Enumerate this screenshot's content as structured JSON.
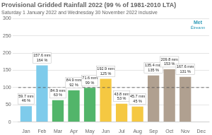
{
  "chart_data": {
    "type": "bar",
    "title": "Provisional Gridded Rainfall 2022 (99 % of 1981-2010 LTA)",
    "subtitle": "Saturday 1 January 2022 and Wednesday 30 November 2022 inclusive",
    "categories": [
      "Jan",
      "Feb",
      "Mar",
      "Apr",
      "May",
      "Jun",
      "Jul",
      "Aug",
      "Sep",
      "Oct",
      "Nov",
      "Dec"
    ],
    "values": [
      46,
      164,
      63,
      92,
      99,
      125,
      53,
      45,
      135,
      153,
      131,
      null
    ],
    "value_labels": [
      "46 %",
      "164 %",
      "63 %",
      "92 %",
      "99 %",
      "125 %",
      "53 %",
      "45 %",
      "135 %",
      "153 %",
      "131 %",
      null
    ],
    "rainfall_labels": [
      "59.7 mm",
      "157.6 mm",
      "84.9 mm",
      "84.9 mm",
      "71.6 mm",
      "192.9 mm",
      "43.8 mm",
      "45.7 mm",
      "135.4 mm",
      "209.8 mm",
      "167.6 mm",
      null
    ],
    "colors": [
      "#7ECBEB",
      "#7ECBEB",
      "#52B56A",
      "#52B56A",
      "#52B56A",
      "#F5C842",
      "#F5C842",
      "#F5C842",
      "#B0A090",
      "#B0A090",
      "#B0A090",
      "#B0A090"
    ],
    "reference_line": 100,
    "ylim": [
      0,
      300
    ],
    "yticks": [
      0,
      50,
      100,
      150,
      200,
      250,
      300
    ],
    "grid": true,
    "data_labels": true,
    "annotations": [
      "Met",
      "Éireann"
    ]
  }
}
